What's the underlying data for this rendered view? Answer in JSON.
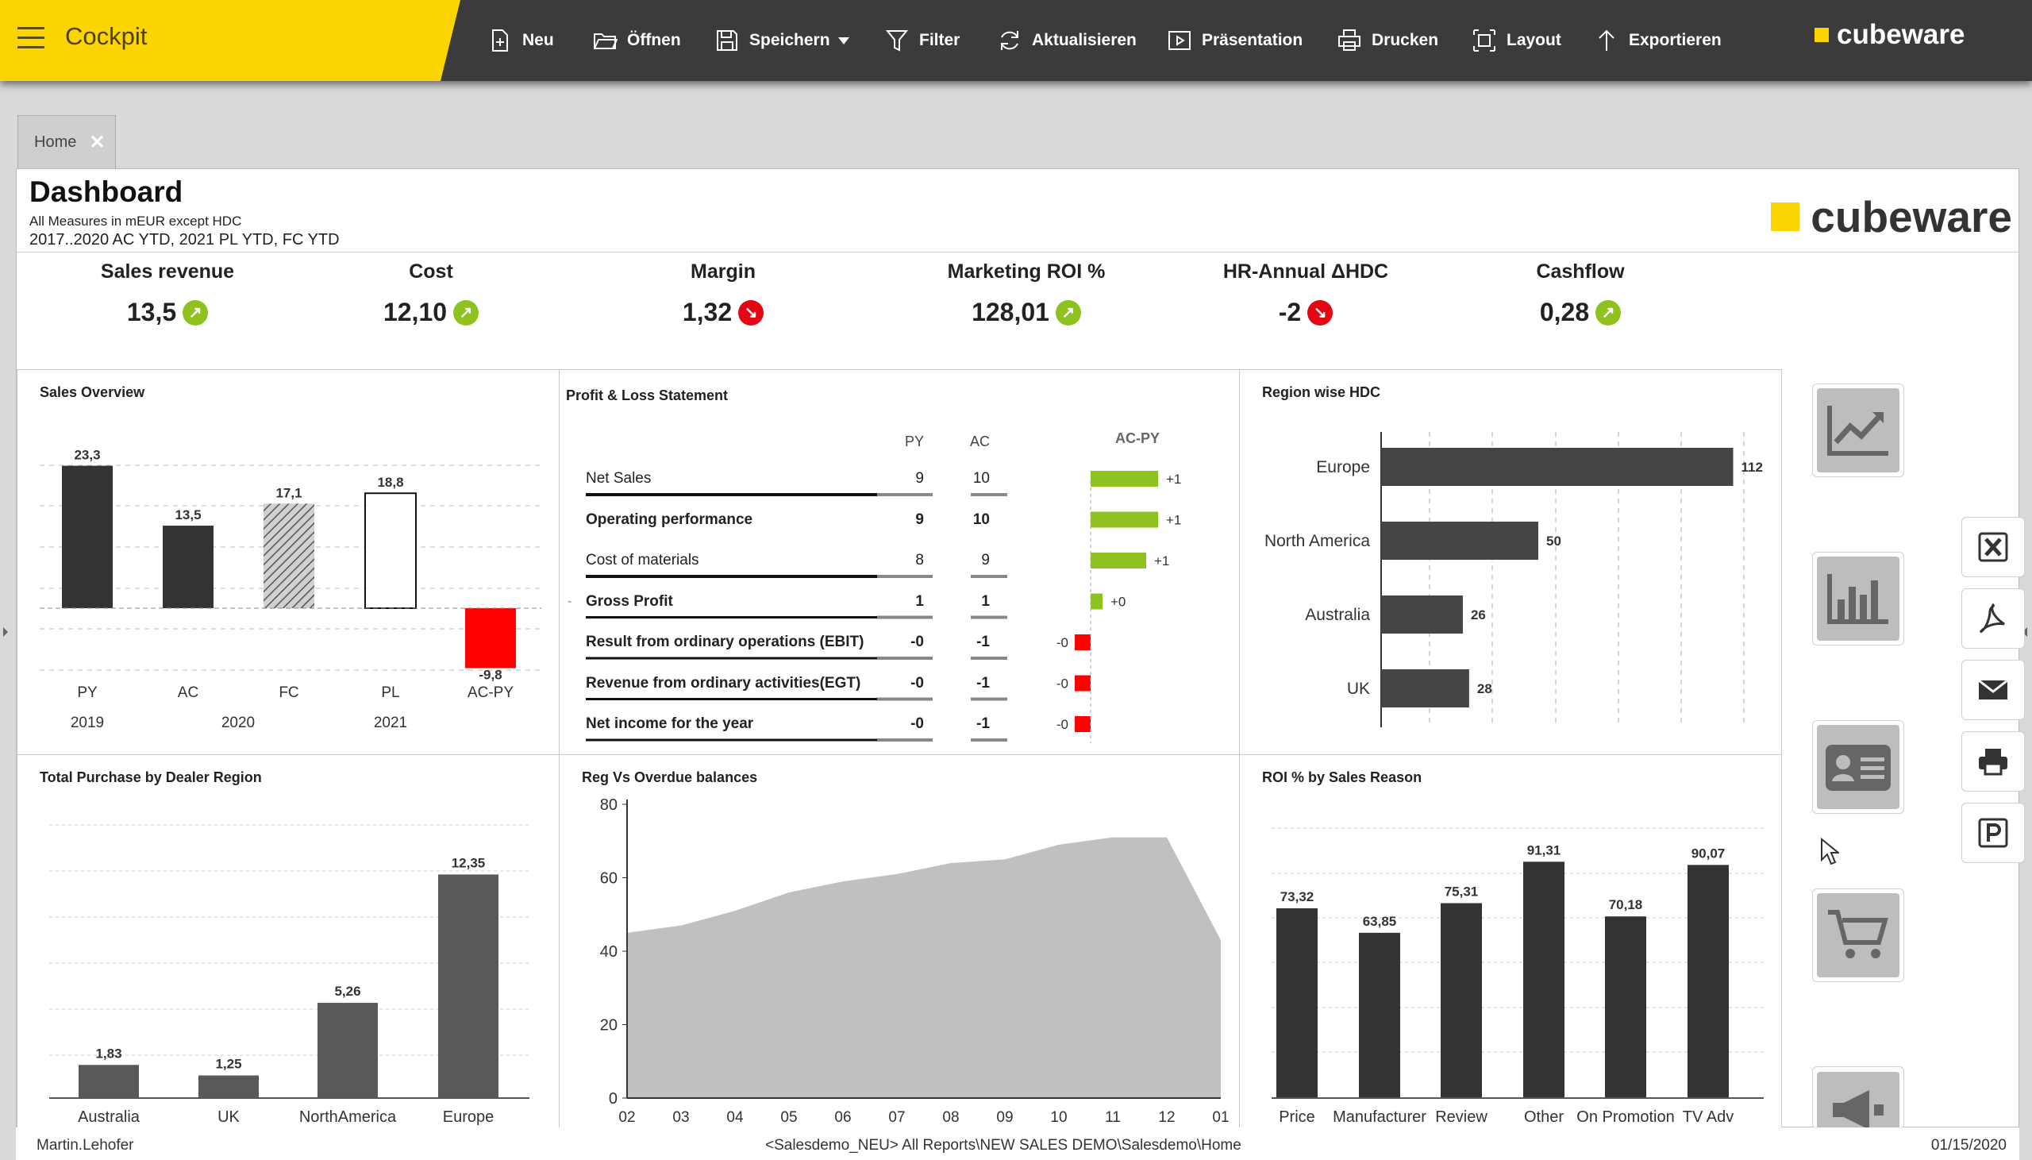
{
  "app": {
    "title": "Cockpit",
    "brand": "cubeware"
  },
  "toolbar": {
    "new": "Neu",
    "open": "Öffnen",
    "save": "Speichern",
    "filter": "Filter",
    "refresh": "Aktualisieren",
    "presentation": "Präsentation",
    "print": "Drucken",
    "layout": "Layout",
    "export": "Exportieren"
  },
  "tabs": [
    {
      "label": "Home"
    }
  ],
  "header": {
    "title": "Dashboard",
    "subtitle1": "All Measures in mEUR except HDC",
    "subtitle2": "2017..2020 AC YTD, 2021 PL YTD, FC YTD",
    "logo_text": "cubeware"
  },
  "kpis": [
    {
      "label": "Sales revenue",
      "value": "13,5",
      "trend": "up"
    },
    {
      "label": "Cost",
      "value": "12,10",
      "trend": "up"
    },
    {
      "label": "Margin",
      "value": "1,32",
      "trend": "down"
    },
    {
      "label": "Marketing ROI %",
      "value": "128,01",
      "trend": "up"
    },
    {
      "label": "HR-Annual ΔHDC",
      "value": "-2",
      "trend": "down"
    },
    {
      "label": "Cashflow",
      "value": "0,28",
      "trend": "up"
    }
  ],
  "colors": {
    "accent": "#fcd400",
    "toolbar": "#3b3b3b",
    "bar_dark": "#333333",
    "bar_grey": "#595959",
    "positive": "#8dc21f",
    "negative": "#ff0000",
    "area": "#c0c0c0"
  },
  "panels": {
    "sales": "Sales Overview",
    "pnl": "Profit & Loss Statement",
    "region": "Region wise HDC",
    "purchase": "Total Purchase by Dealer Region",
    "overdue": "Reg Vs Overdue balances",
    "roi": "ROI % by Sales Reason"
  },
  "pnl": {
    "col_py": "PY",
    "col_ac": "AC",
    "delta_header": "AC-PY",
    "rows": [
      {
        "label": "Net Sales",
        "py": "9",
        "ac": "10",
        "delta": "+1",
        "bold": false,
        "dval": 1.7
      },
      {
        "label": "Operating performance",
        "py": "9",
        "ac": "10",
        "delta": "+1",
        "bold": true,
        "dval": 1.7
      },
      {
        "label": "Cost of materials",
        "py": "8",
        "ac": "9",
        "delta": "+1",
        "bold": false,
        "dval": 1.4
      },
      {
        "label": "Gross Profit",
        "py": "1",
        "ac": "1",
        "delta": "+0",
        "bold": true,
        "dval": 0.3
      },
      {
        "label": "Result from ordinary operations (EBIT)",
        "py": "-0",
        "ac": "-1",
        "delta": "-0",
        "bold": true,
        "dval": -0.4
      },
      {
        "label": "Revenue from ordinary activities(EGT)",
        "py": "-0",
        "ac": "-1",
        "delta": "-0",
        "bold": true,
        "dval": -0.4
      },
      {
        "label": "Net income for the year",
        "py": "-0",
        "ac": "-1",
        "delta": "-0",
        "bold": true,
        "dval": -0.4
      }
    ]
  },
  "chart_data": [
    {
      "id": "sales",
      "type": "bar",
      "title": "Sales Overview",
      "categories": [
        "PY",
        "AC",
        "FC",
        "PL",
        "AC-PY"
      ],
      "years": [
        "2019",
        "2020",
        "2021"
      ],
      "values": [
        23.3,
        13.5,
        17.1,
        18.8,
        -9.8
      ],
      "labels": [
        "23,3",
        "13,5",
        "17,1",
        "18,8",
        "-9,8"
      ],
      "styles": [
        "solid",
        "solid",
        "hatched",
        "outline",
        "negative"
      ],
      "ylim": [
        -10,
        25
      ]
    },
    {
      "id": "region",
      "type": "bar",
      "orientation": "horizontal",
      "title": "Region wise HDC",
      "categories": [
        "Europe",
        "North America",
        "Australia",
        "UK"
      ],
      "values": [
        112,
        50,
        26,
        28
      ],
      "xlim": [
        0,
        120
      ]
    },
    {
      "id": "purchase",
      "type": "bar",
      "title": "Total Purchase by Dealer Region",
      "categories": [
        "Australia",
        "UK",
        "NorthAmerica",
        "Europe"
      ],
      "values": [
        1.83,
        1.25,
        5.26,
        12.35
      ],
      "labels": [
        "1,83",
        "1,25",
        "5,26",
        "12,35"
      ],
      "ylim": [
        0,
        13
      ]
    },
    {
      "id": "overdue",
      "type": "area",
      "title": "Reg Vs Overdue balances",
      "x": [
        "02",
        "03",
        "04",
        "05",
        "06",
        "07",
        "08",
        "09",
        "10",
        "11",
        "12",
        "01"
      ],
      "values": [
        45,
        47,
        51,
        56,
        59,
        61,
        64,
        65,
        69,
        71,
        71,
        43
      ],
      "ylim": [
        0,
        80
      ],
      "yticks": [
        0,
        20,
        40,
        60,
        80
      ]
    },
    {
      "id": "roi",
      "type": "bar",
      "title": "ROI % by Sales Reason",
      "categories": [
        "Price",
        "Manufacturer",
        "Review",
        "Other",
        "On Promotion",
        "TV Adv"
      ],
      "values": [
        73.32,
        63.85,
        75.31,
        91.31,
        70.18,
        90.07
      ],
      "labels": [
        "73,32",
        "63,85",
        "75,31",
        "91,31",
        "70,18",
        "90,07"
      ],
      "ylim": [
        0,
        100
      ]
    }
  ],
  "sidebar": {
    "icons": [
      "line-chart-icon",
      "bar-chart-icon",
      "id-card-icon",
      "cart-icon",
      "megaphone-icon",
      "excel-icon",
      "pdf-icon",
      "mail-icon",
      "printer-icon",
      "powerpoint-icon"
    ]
  },
  "status": {
    "user": "Martin.Lehofer",
    "path": "<Salesdemo_NEU> All Reports\\NEW SALES DEMO\\Salesdemo\\Home",
    "date": "01/15/2020"
  }
}
